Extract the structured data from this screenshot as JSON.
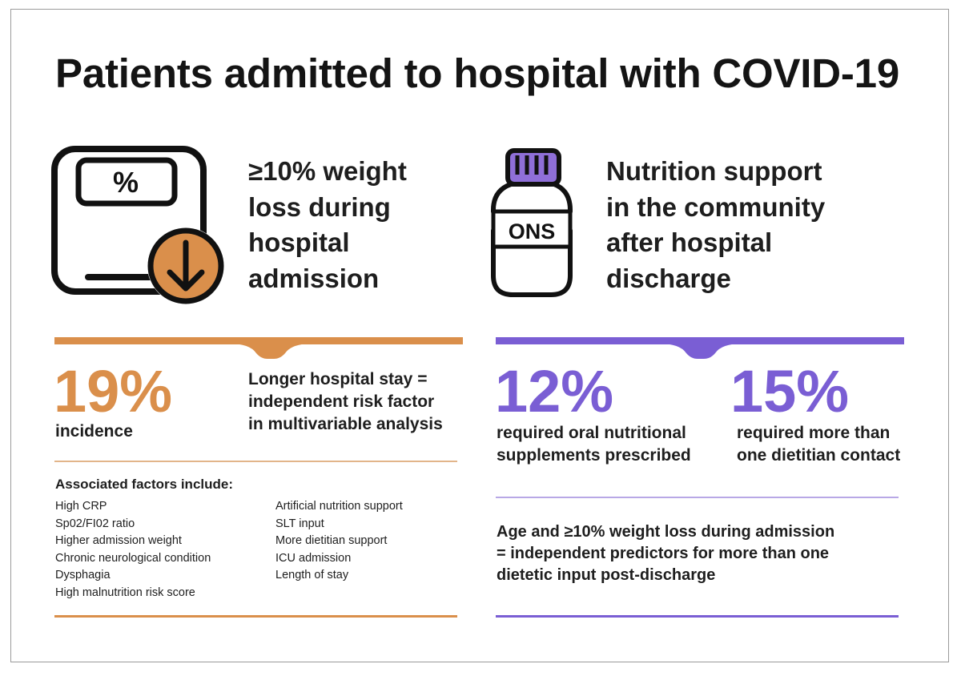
{
  "title": "Patients admitted to hospital with COVID-19",
  "colors": {
    "orange": "#da8f4b",
    "purple": "#7a5ed4",
    "text": "#1e1e1e"
  },
  "left_panel": {
    "icon": "weighing-scale-down-arrow-icon",
    "scale_symbol": "%",
    "heading_lines": [
      "≥10% weight",
      "loss during",
      "hospital",
      "admission"
    ],
    "stat_value": "19%",
    "stat_label": "incidence",
    "risk_note_lines": [
      "Longer hospital stay =",
      "independent risk factor",
      "in multivariable analysis"
    ],
    "factors_heading": "Associated factors include:",
    "factors_col1": [
      "High CRP",
      "Sp02/FI02 ratio",
      "Higher admission weight",
      "Chronic neurological condition",
      "Dysphagia",
      "High malnutrition risk score"
    ],
    "factors_col2": [
      "Artificial nutrition support",
      "SLT input",
      "More dietitian support",
      "ICU admission",
      "Length of stay"
    ]
  },
  "right_panel": {
    "icon": "supplement-bottle-icon",
    "bottle_label": "ONS",
    "heading_lines": [
      "Nutrition support",
      "in the community",
      "after hospital",
      "discharge"
    ],
    "stat1_value": "12%",
    "stat1_label_lines": [
      "required oral nutritional",
      "supplements prescribed"
    ],
    "stat2_value": "15%",
    "stat2_label_lines": [
      "required more than",
      "one dietitian contact"
    ],
    "predictor_lines": [
      "Age and ≥10% weight loss during admission",
      "= independent predictors for more than one",
      "dietetic input post-discharge"
    ]
  }
}
